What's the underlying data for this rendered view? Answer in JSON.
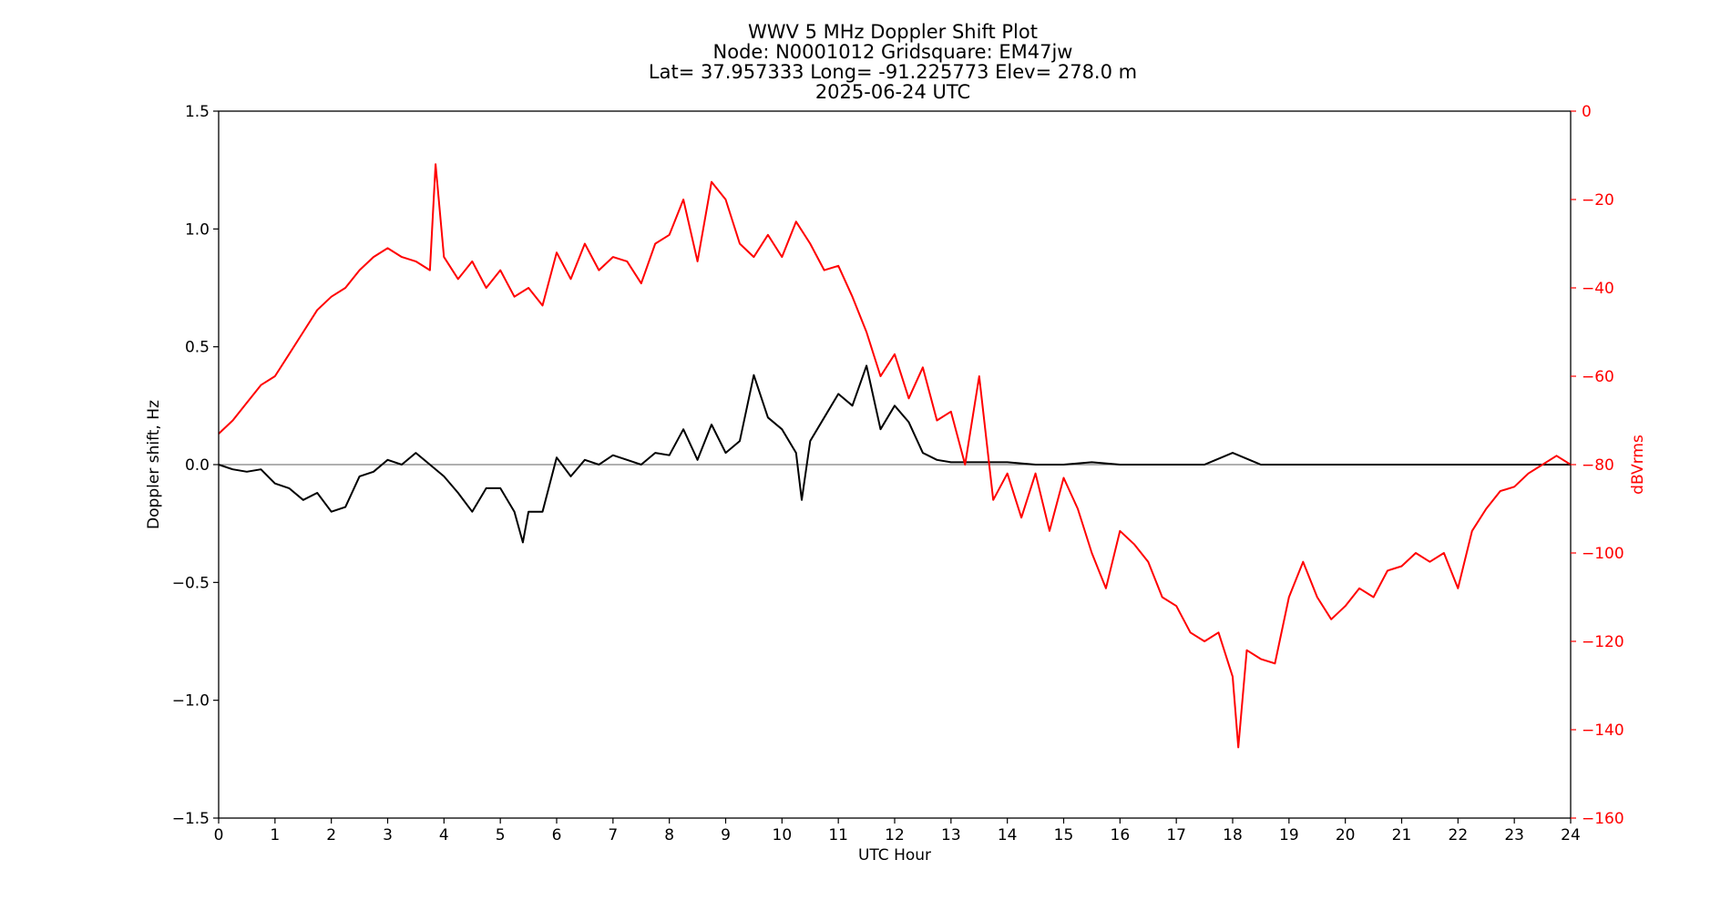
{
  "chart_data": {
    "type": "line",
    "title": [
      "WWV 5 MHz Doppler Shift Plot",
      "Node:  N0001012      Gridsquare:  EM47jw",
      "Lat= 37.957333    Long= -91.225773    Elev= 278.0 m",
      "2025-06-24  UTC"
    ],
    "xlabel": "UTC Hour",
    "ylabel": "Doppler shift, Hz",
    "ylabel_right": "dBVrms",
    "xlim": [
      0,
      24
    ],
    "ylim": [
      -1.5,
      1.5
    ],
    "ylim_right": [
      -160,
      0
    ],
    "x_ticks": [
      "0",
      "1",
      "2",
      "3",
      "4",
      "5",
      "6",
      "7",
      "8",
      "9",
      "10",
      "11",
      "12",
      "13",
      "14",
      "15",
      "16",
      "17",
      "18",
      "19",
      "20",
      "21",
      "22",
      "23",
      "24"
    ],
    "y_ticks": [
      "−1.5",
      "−1.0",
      "−0.5",
      "0.0",
      "0.5",
      "1.0",
      "1.5"
    ],
    "y_right_ticks": [
      "−160",
      "−140",
      "−120",
      "−100",
      "−80",
      "−60",
      "−40",
      "−20",
      "0"
    ],
    "zero_line": 0.0,
    "grid": false,
    "colors": {
      "doppler": "#000000",
      "power": "#ff0000",
      "zero_line": "#808080"
    },
    "series": [
      {
        "axis": "left",
        "x": [
          0,
          0.25,
          0.5,
          0.75,
          1,
          1.25,
          1.5,
          1.75,
          2,
          2.25,
          2.5,
          2.75,
          3,
          3.25,
          3.5,
          3.75,
          4,
          4.25,
          4.5,
          4.75,
          5,
          5.25,
          5.4,
          5.5,
          5.75,
          6,
          6.25,
          6.5,
          6.75,
          7,
          7.25,
          7.5,
          7.75,
          8,
          8.25,
          8.5,
          8.75,
          9,
          9.25,
          9.5,
          9.75,
          10,
          10.25,
          10.35,
          10.5,
          10.75,
          11,
          11.25,
          11.5,
          11.75,
          12,
          12.25,
          12.5,
          12.75,
          13,
          13.5,
          14,
          14.5,
          15,
          15.5,
          16,
          16.5,
          17,
          17.5,
          18,
          18.5,
          19,
          19.5,
          20,
          20.5,
          21,
          21.5,
          22,
          22.5,
          23,
          23.5,
          24
        ],
        "values": [
          0.0,
          -0.02,
          -0.03,
          -0.02,
          -0.08,
          -0.1,
          -0.15,
          -0.12,
          -0.2,
          -0.18,
          -0.05,
          -0.03,
          0.02,
          0.0,
          0.05,
          0.0,
          -0.05,
          -0.12,
          -0.2,
          -0.1,
          -0.1,
          -0.2,
          -0.33,
          -0.2,
          -0.2,
          0.03,
          -0.05,
          0.02,
          0.0,
          0.04,
          0.02,
          0.0,
          0.05,
          0.04,
          0.15,
          0.02,
          0.17,
          0.05,
          0.1,
          0.38,
          0.2,
          0.15,
          0.05,
          -0.15,
          0.1,
          0.2,
          0.3,
          0.25,
          0.42,
          0.15,
          0.25,
          0.18,
          0.05,
          0.02,
          0.01,
          0.01,
          0.01,
          0.0,
          0.0,
          0.01,
          0.0,
          0.0,
          0.0,
          0.0,
          0.05,
          0.0,
          0.0,
          0.0,
          0.0,
          0.0,
          0.0,
          0.0,
          0.0,
          0.0,
          0.0,
          0.0,
          0.0
        ]
      },
      {
        "axis": "right",
        "x": [
          0,
          0.25,
          0.5,
          0.75,
          1,
          1.25,
          1.5,
          1.75,
          2,
          2.25,
          2.5,
          2.75,
          3,
          3.25,
          3.5,
          3.75,
          3.85,
          4,
          4.25,
          4.5,
          4.75,
          5,
          5.25,
          5.5,
          5.75,
          6,
          6.25,
          6.5,
          6.75,
          7,
          7.25,
          7.5,
          7.75,
          8,
          8.25,
          8.5,
          8.75,
          9,
          9.25,
          9.5,
          9.75,
          10,
          10.25,
          10.5,
          10.75,
          11,
          11.25,
          11.5,
          11.75,
          12,
          12.25,
          12.5,
          12.75,
          13,
          13.25,
          13.5,
          13.75,
          14,
          14.25,
          14.5,
          14.75,
          15,
          15.25,
          15.5,
          15.75,
          16,
          16.25,
          16.5,
          16.75,
          17,
          17.25,
          17.5,
          17.75,
          18,
          18.1,
          18.25,
          18.5,
          18.75,
          19,
          19.25,
          19.5,
          19.75,
          20,
          20.25,
          20.5,
          20.75,
          21,
          21.25,
          21.5,
          21.75,
          22,
          22.25,
          22.5,
          22.75,
          23,
          23.25,
          23.5,
          23.75,
          24
        ],
        "values": [
          -73,
          -70,
          -66,
          -62,
          -60,
          -55,
          -50,
          -45,
          -42,
          -40,
          -36,
          -33,
          -31,
          -33,
          -34,
          -36,
          -12,
          -33,
          -38,
          -34,
          -40,
          -36,
          -42,
          -40,
          -44,
          -32,
          -38,
          -30,
          -36,
          -33,
          -34,
          -39,
          -30,
          -28,
          -20,
          -34,
          -16,
          -20,
          -30,
          -33,
          -28,
          -33,
          -25,
          -30,
          -36,
          -35,
          -42,
          -50,
          -60,
          -55,
          -65,
          -58,
          -70,
          -68,
          -80,
          -60,
          -88,
          -82,
          -92,
          -82,
          -95,
          -83,
          -90,
          -100,
          -108,
          -95,
          -98,
          -102,
          -110,
          -112,
          -118,
          -120,
          -118,
          -128,
          -144,
          -122,
          -124,
          -125,
          -110,
          -102,
          -110,
          -115,
          -112,
          -108,
          -110,
          -104,
          -103,
          -100,
          -102,
          -100,
          -108,
          -95,
          -90,
          -86,
          -85,
          -82,
          -80,
          -78,
          -80
        ]
      }
    ]
  }
}
